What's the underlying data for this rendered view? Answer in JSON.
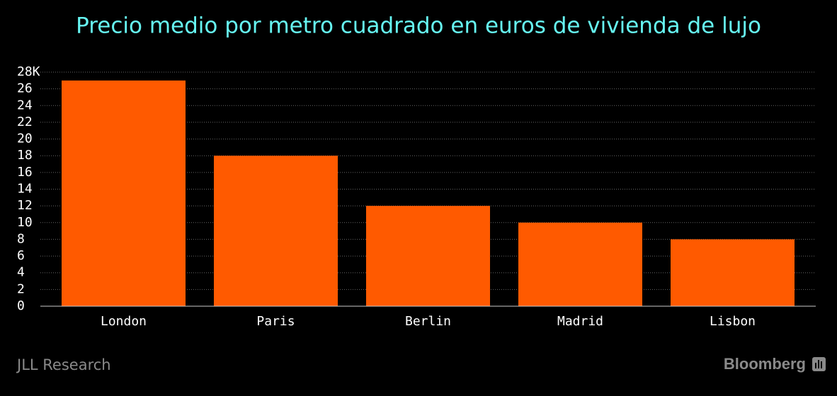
{
  "chart_data": {
    "type": "bar",
    "title": "Precio medio por metro cuadrado en euros de vivienda de lujo",
    "categories": [
      "London",
      "Paris",
      "Berlin",
      "Madrid",
      "Lisbon"
    ],
    "values": [
      27,
      18,
      12,
      10,
      8
    ],
    "color": "#ff5a00",
    "ylim": [
      0,
      28
    ],
    "yticks": [
      0,
      2,
      4,
      6,
      8,
      10,
      12,
      14,
      16,
      18,
      20,
      22,
      24,
      26,
      {
        "value": 28,
        "label": "28K"
      }
    ],
    "grid": true,
    "source": "JLL Research",
    "brand": "Bloomberg"
  }
}
